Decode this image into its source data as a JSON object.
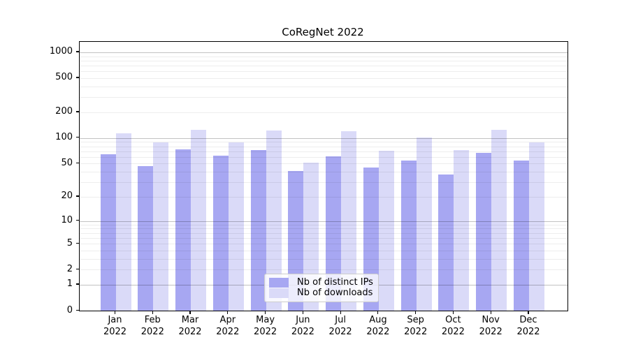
{
  "title": "CoRegNet 2022",
  "chart_data": {
    "type": "bar",
    "title": "CoRegNet 2022",
    "xlabel": "",
    "ylabel": "",
    "scale": "log1p",
    "ylim": [
      0,
      1320
    ],
    "grid": "major-and-minor",
    "legend_position": "lower center",
    "yticks": [
      0,
      1,
      2,
      5,
      10,
      20,
      50,
      100,
      200,
      500,
      1000
    ],
    "categories": [
      "Jan",
      "Feb",
      "Mar",
      "Apr",
      "May",
      "Jun",
      "Jul",
      "Aug",
      "Sep",
      "Oct",
      "Nov",
      "Dec"
    ],
    "year_label": "2022",
    "series": [
      {
        "name": "Nb of distinct IPs",
        "color": "#a7a7f2",
        "values": [
          64,
          47,
          73,
          62,
          72,
          41,
          61,
          45,
          54,
          37,
          67,
          54
        ]
      },
      {
        "name": "Nb of downloads",
        "color": "#dadaf8",
        "values": [
          114,
          89,
          126,
          89,
          123,
          51,
          120,
          71,
          102,
          72,
          125,
          89
        ]
      }
    ]
  },
  "colors": {
    "frame": "#000000",
    "grid_major": "rgba(0,0,0,0.24)",
    "grid_minor": "rgba(0,0,0,0.07)",
    "background": "#ffffff"
  }
}
